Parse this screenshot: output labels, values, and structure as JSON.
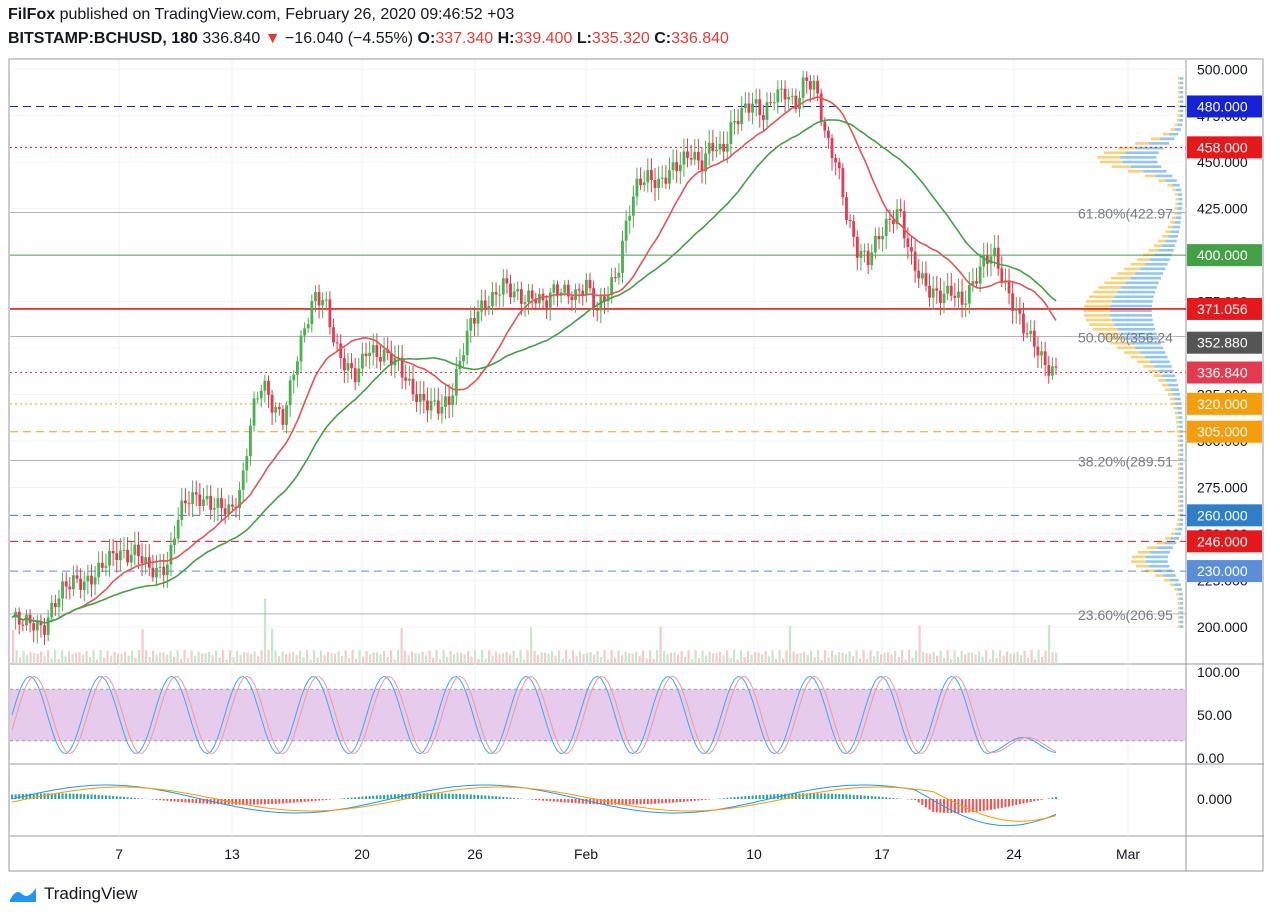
{
  "header": {
    "author": "FilFox",
    "published_text": "published on TradingView.com, February 26, 2020 09:46:52 +03",
    "symbol": "BITSTAMP:BCHUSD, 180",
    "last": "336.840",
    "change": "−16.040 (−4.55%)",
    "open_label": "O:",
    "open": "337.340",
    "high_label": "H:",
    "high": "339.400",
    "low_label": "L:",
    "low": "335.320",
    "close_label": "C:",
    "close": "336.840"
  },
  "brand": {
    "name": "TradingView"
  },
  "colors": {
    "up": "#4caf50",
    "down": "#e53950",
    "ma_fast": "#e05656",
    "ma_slow": "#43a047",
    "rsi_band": "#e1bee7"
  },
  "chart_data": {
    "type": "candlestick",
    "price_axis": {
      "min": 180,
      "max": 505,
      "ticks": [
        "500.000",
        "475.000",
        "450.000",
        "425.000",
        "400.000",
        "375.000",
        "350.000",
        "325.000",
        "300.000",
        "275.000",
        "250.000",
        "225.000",
        "200.000"
      ]
    },
    "x_labels": [
      "7",
      "13",
      "20",
      "26",
      "Feb",
      "10",
      "17",
      "24",
      "Mar"
    ],
    "close_path": [
      205,
      203,
      202,
      198,
      212,
      222,
      225,
      223,
      228,
      236,
      240,
      238,
      241,
      232,
      229,
      234,
      262,
      270,
      269,
      266,
      265,
      262,
      275,
      316,
      332,
      318,
      312,
      338,
      360,
      378,
      375,
      350,
      340,
      335,
      350,
      346,
      346,
      342,
      330,
      322,
      320,
      318,
      322,
      345,
      365,
      372,
      376,
      385,
      380,
      376,
      378,
      374,
      382,
      380,
      378,
      385,
      370,
      380,
      390,
      422,
      440,
      442,
      438,
      445,
      450,
      455,
      448,
      460,
      455,
      470,
      478,
      482,
      475,
      486,
      488,
      480,
      495,
      490,
      462,
      450,
      420,
      402,
      398,
      410,
      418,
      424,
      400,
      388,
      380,
      378,
      381,
      374,
      384,
      396,
      402,
      385,
      372,
      360,
      352,
      340,
      337
    ],
    "levels": [
      {
        "label": "480.000",
        "value": 480,
        "color": "#1522d6",
        "style": "dashed"
      },
      {
        "label": "458.000",
        "value": 458,
        "color": "#e5191b",
        "style": "dotted"
      },
      {
        "label": "400.000",
        "value": 400,
        "color": "#43a047",
        "style": "solid-thin"
      },
      {
        "label": "371.056",
        "value": 371.056,
        "color": "#e5191b",
        "style": "solid"
      },
      {
        "label": "352.880",
        "value": 352.88,
        "color": "#555555",
        "style": "none"
      },
      {
        "label": "336.840",
        "value": 336.84,
        "color": "#e53950",
        "style": "dotted"
      },
      {
        "label": "320.000",
        "value": 320,
        "color": "#f59d0a",
        "style": "dotted"
      },
      {
        "label": "305.000",
        "value": 305,
        "color": "#f59d0a",
        "style": "dashed"
      },
      {
        "label": "260.000",
        "value": 260,
        "color": "#2f7fc8",
        "style": "dashed"
      },
      {
        "label": "246.000",
        "value": 246,
        "color": "#e5191b",
        "style": "dashed"
      },
      {
        "label": "230.000",
        "value": 230,
        "color": "#5a8fd8",
        "style": "dashed"
      }
    ],
    "fib": [
      {
        "label": "61.80%(422.97",
        "value": 422.97
      },
      {
        "label": "50.00%(356.24",
        "value": 356.24
      },
      {
        "label": "38.20%(289.51",
        "value": 289.51
      },
      {
        "label": "23.60%(206.95",
        "value": 206.95
      }
    ],
    "rsi_axis": [
      "100.00",
      "50.00",
      "0.00"
    ],
    "macd_axis": [
      "0.000"
    ]
  }
}
